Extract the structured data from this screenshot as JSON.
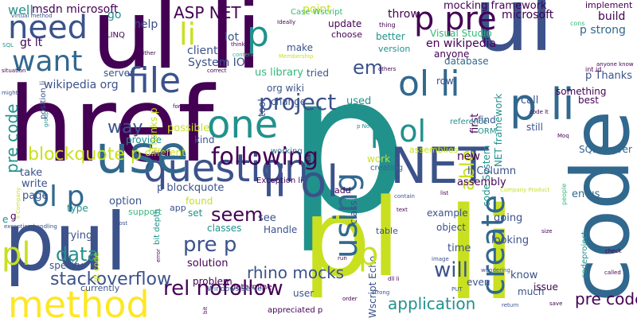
{
  "colors": {
    "purple": "#440154",
    "indigo": "#3b528b",
    "blue": "#31688e",
    "teal": "#21918c",
    "green": "#35b779",
    "lime": "#c8e020",
    "yellow": "#fde725"
  },
  "words": [
    {
      "text": "p",
      "color": "teal"
    },
    {
      "text": "href",
      "color": "purple"
    },
    {
      "text": "ul li",
      "color": "purple"
    },
    {
      "text": "pl",
      "color": "lime"
    },
    {
      "text": "li",
      "color": "lime"
    },
    {
      "text": "ul",
      "color": "indigo"
    },
    {
      "text": "pul",
      "color": "indigo"
    },
    {
      "text": "code",
      "color": "blue"
    },
    {
      "text": "NET",
      "color": "indigo"
    },
    {
      "text": "question",
      "color": "indigo"
    },
    {
      "text": "use",
      "color": "blue"
    },
    {
      "text": "method",
      "color": "yellow"
    },
    {
      "text": "want",
      "color": "blue"
    },
    {
      "text": "need",
      "color": "indigo"
    },
    {
      "text": "file",
      "color": "indigo"
    },
    {
      "text": "one",
      "color": "teal"
    },
    {
      "text": "ol li",
      "color": "blue"
    },
    {
      "text": "p ol",
      "color": "teal"
    },
    {
      "text": "li ol",
      "color": "indigo"
    },
    {
      "text": "using",
      "color": "blue"
    },
    {
      "text": "create",
      "color": "blue"
    },
    {
      "text": "project",
      "color": "indigo"
    },
    {
      "text": "p li",
      "color": "blue"
    },
    {
      "text": "ol p",
      "color": "blue"
    },
    {
      "text": "p pre",
      "color": "purple"
    },
    {
      "text": "following",
      "color": "purple"
    },
    {
      "text": "ASP NET",
      "color": "purple"
    },
    {
      "text": "li",
      "color": "lime"
    },
    {
      "text": "p",
      "color": "teal"
    },
    {
      "text": "rel nofollow",
      "color": "purple"
    },
    {
      "text": "application",
      "color": "teal"
    },
    {
      "text": "stackoverflow",
      "color": "indigo"
    },
    {
      "text": "blockquote p",
      "color": "lime"
    },
    {
      "text": "pre code",
      "color": "teal"
    },
    {
      "text": "pre code",
      "color": "purple"
    },
    {
      "text": "way",
      "color": "indigo"
    },
    {
      "text": "will",
      "color": "indigo"
    },
    {
      "text": "able",
      "color": "lime"
    },
    {
      "text": "pre p",
      "color": "indigo"
    },
    {
      "text": "seem",
      "color": "purple"
    },
    {
      "text": "data",
      "color": "teal"
    },
    {
      "text": "em",
      "color": "indigo"
    },
    {
      "text": "rhino mocks",
      "color": "indigo"
    },
    {
      "text": "mocking framework",
      "color": "purple"
    },
    {
      "text": "en wikipedia",
      "color": "purple"
    },
    {
      "text": "p strong",
      "color": "blue"
    },
    {
      "text": "microsoft",
      "color": "purple"
    },
    {
      "text": "build",
      "color": "purple"
    },
    {
      "text": "implement",
      "color": "purple"
    },
    {
      "text": "throw",
      "color": "purple"
    },
    {
      "text": "point",
      "color": "lime"
    },
    {
      "text": "go",
      "color": "teal"
    },
    {
      "text": "msdn microsoft",
      "color": "purple"
    },
    {
      "text": "well",
      "color": "teal"
    },
    {
      "text": "gt lt",
      "color": "purple"
    },
    {
      "text": "LINQ",
      "color": "purple"
    },
    {
      "text": "help",
      "color": "indigo"
    },
    {
      "text": "lot",
      "color": "indigo"
    },
    {
      "text": "client",
      "color": "indigo"
    },
    {
      "text": "System IO",
      "color": "indigo"
    },
    {
      "text": "server",
      "color": "indigo"
    },
    {
      "text": "wikipedia org",
      "color": "indigo"
    },
    {
      "text": "org wiki",
      "color": "indigo"
    },
    {
      "text": "us library",
      "color": "green"
    },
    {
      "text": "make",
      "color": "indigo"
    },
    {
      "text": "tried",
      "color": "indigo"
    },
    {
      "text": "update",
      "color": "purple"
    },
    {
      "text": "choose",
      "color": "purple"
    },
    {
      "text": "anyone",
      "color": "purple"
    },
    {
      "text": "Visual Studio",
      "color": "green"
    },
    {
      "text": "database",
      "color": "blue"
    },
    {
      "text": "better",
      "color": "teal"
    },
    {
      "text": "version",
      "color": "teal"
    },
    {
      "text": "row",
      "color": "indigo"
    },
    {
      "text": "p Thanks",
      "color": "indigo"
    },
    {
      "text": "something",
      "color": "purple"
    },
    {
      "text": "call",
      "color": "indigo"
    },
    {
      "text": "best",
      "color": "purple"
    },
    {
      "text": "SQL Server",
      "color": "blue"
    },
    {
      "text": "NET framework",
      "color": "teal"
    },
    {
      "text": "tool",
      "color": "indigo"
    },
    {
      "text": "change",
      "color": "indigo"
    },
    {
      "text": "used",
      "color": "teal"
    },
    {
      "text": "two",
      "color": "teal"
    },
    {
      "text": "first",
      "color": "purple"
    },
    {
      "text": "code System",
      "color": "teal"
    },
    {
      "text": "find",
      "color": "indigo"
    },
    {
      "text": "reference",
      "color": "teal"
    },
    {
      "text": "ORM",
      "color": "teal"
    },
    {
      "text": "still",
      "color": "indigo"
    },
    {
      "text": "possible",
      "color": "lime"
    },
    {
      "text": "kind",
      "color": "indigo"
    },
    {
      "text": "provide",
      "color": "teal"
    },
    {
      "text": "different",
      "color": "lime"
    },
    {
      "text": "working",
      "color": "blue"
    },
    {
      "text": "work",
      "color": "lime"
    },
    {
      "text": "creating",
      "color": "blue"
    },
    {
      "text": "assemblies",
      "color": "lime"
    },
    {
      "text": "new",
      "color": "purple"
    },
    {
      "text": "li Column",
      "color": "indigo"
    },
    {
      "text": "assembly",
      "color": "purple"
    },
    {
      "text": "c",
      "color": "purple"
    },
    {
      "text": "take",
      "color": "indigo"
    },
    {
      "text": "write",
      "color": "indigo"
    },
    {
      "text": "page",
      "color": "indigo"
    },
    {
      "text": "p blockquote",
      "color": "indigo"
    },
    {
      "text": "option",
      "color": "indigo"
    },
    {
      "text": "support",
      "color": "green"
    },
    {
      "text": "type",
      "color": "teal"
    },
    {
      "text": "app",
      "color": "indigo"
    },
    {
      "text": "found",
      "color": "lime"
    },
    {
      "text": "set",
      "color": "teal"
    },
    {
      "text": "see",
      "color": "indigo"
    },
    {
      "text": "Handle",
      "color": "indigo"
    },
    {
      "text": "Exception li",
      "color": "purple"
    },
    {
      "text": "classes",
      "color": "teal"
    },
    {
      "text": "table",
      "color": "indigo"
    },
    {
      "text": "example",
      "color": "indigo"
    },
    {
      "text": "object",
      "color": "indigo"
    },
    {
      "text": "going",
      "color": "indigo"
    },
    {
      "text": "looking",
      "color": "indigo"
    },
    {
      "text": "time",
      "color": "indigo"
    },
    {
      "text": "even",
      "color": "indigo"
    },
    {
      "text": "know",
      "color": "indigo"
    },
    {
      "text": "issue",
      "color": "purple"
    },
    {
      "text": "much",
      "color": "indigo"
    },
    {
      "text": "en us",
      "color": "blue"
    },
    {
      "text": "trying",
      "color": "indigo"
    },
    {
      "text": "specify",
      "color": "indigo"
    },
    {
      "text": "solution",
      "color": "purple"
    },
    {
      "text": "problem",
      "color": "purple"
    },
    {
      "text": "determine",
      "color": "purple"
    },
    {
      "text": "user",
      "color": "indigo"
    },
    {
      "text": "appreciated p",
      "color": "purple"
    },
    {
      "text": "currently",
      "color": "indigo"
    },
    {
      "text": "add",
      "color": "purple"
    },
    {
      "text": "class",
      "color": "indigo"
    },
    {
      "text": "Wscript Echo",
      "color": "indigo"
    },
    {
      "text": "Windows Server",
      "color": "indigo"
    },
    {
      "text": "codeproject",
      "color": "teal"
    },
    {
      "text": "Thanks p",
      "color": "lime"
    },
    {
      "text": "position li",
      "color": "indigo"
    },
    {
      "text": "gt code",
      "color": "lime"
    },
    {
      "text": "bit depth",
      "color": "teal"
    },
    {
      "text": "e",
      "color": "teal"
    },
    {
      "text": "g",
      "color": "purple"
    },
    {
      "text": "Case Wscript",
      "color": "green"
    },
    {
      "text": "Ideally",
      "color": "purple"
    },
    {
      "text": "thing",
      "color": "purple"
    },
    {
      "text": "cons",
      "color": "green"
    },
    {
      "text": "SQL",
      "color": "teal"
    },
    {
      "text": "virtual method",
      "color": "indigo"
    },
    {
      "text": "might",
      "color": "indigo"
    },
    {
      "text": "either",
      "color": "purple"
    },
    {
      "text": "think",
      "color": "purple"
    },
    {
      "text": "correct",
      "color": "purple"
    },
    {
      "text": "others",
      "color": "purple"
    },
    {
      "text": "int id",
      "color": "purple"
    },
    {
      "text": "anyone know",
      "color": "purple"
    },
    {
      "text": "code lt",
      "color": "purple"
    },
    {
      "text": "Moq",
      "color": "purple"
    },
    {
      "text": "li Company",
      "color": "lime"
    },
    {
      "text": "Company Product",
      "color": "lime"
    },
    {
      "text": "exception handling",
      "color": "indigo"
    },
    {
      "text": "group",
      "color": "teal"
    },
    {
      "text": "format",
      "color": "purple"
    },
    {
      "text": "p Now",
      "color": "teal"
    },
    {
      "text": "wondering",
      "color": "indigo"
    },
    {
      "text": "contain",
      "color": "indigo"
    },
    {
      "text": "list",
      "color": "purple"
    },
    {
      "text": "text",
      "color": "purple"
    },
    {
      "text": "size",
      "color": "purple"
    },
    {
      "text": "image",
      "color": "indigo"
    },
    {
      "text": "check",
      "color": "purple"
    },
    {
      "text": "called",
      "color": "purple"
    },
    {
      "text": "return",
      "color": "indigo"
    },
    {
      "text": "dll li",
      "color": "purple"
    },
    {
      "text": "strong",
      "color": "indigo"
    },
    {
      "text": "PUT",
      "color": "indigo"
    },
    {
      "text": "save",
      "color": "purple"
    },
    {
      "text": "people",
      "color": "green"
    },
    {
      "text": "post",
      "color": "indigo"
    },
    {
      "text": "run",
      "color": "purple"
    },
    {
      "text": "read",
      "color": "purple"
    },
    {
      "text": "error",
      "color": "purple"
    },
    {
      "text": "done",
      "color": "purple"
    },
    {
      "text": "order",
      "color": "purple"
    },
    {
      "text": "content",
      "color": "green"
    },
    {
      "text": "Membership",
      "color": "lime"
    },
    {
      "text": "situation",
      "color": "purple"
    },
    {
      "text": "bit",
      "color": "purple"
    },
    {
      "text": "pl",
      "color": "lime"
    },
    {
      "text": "pl",
      "color": "lime"
    }
  ]
}
